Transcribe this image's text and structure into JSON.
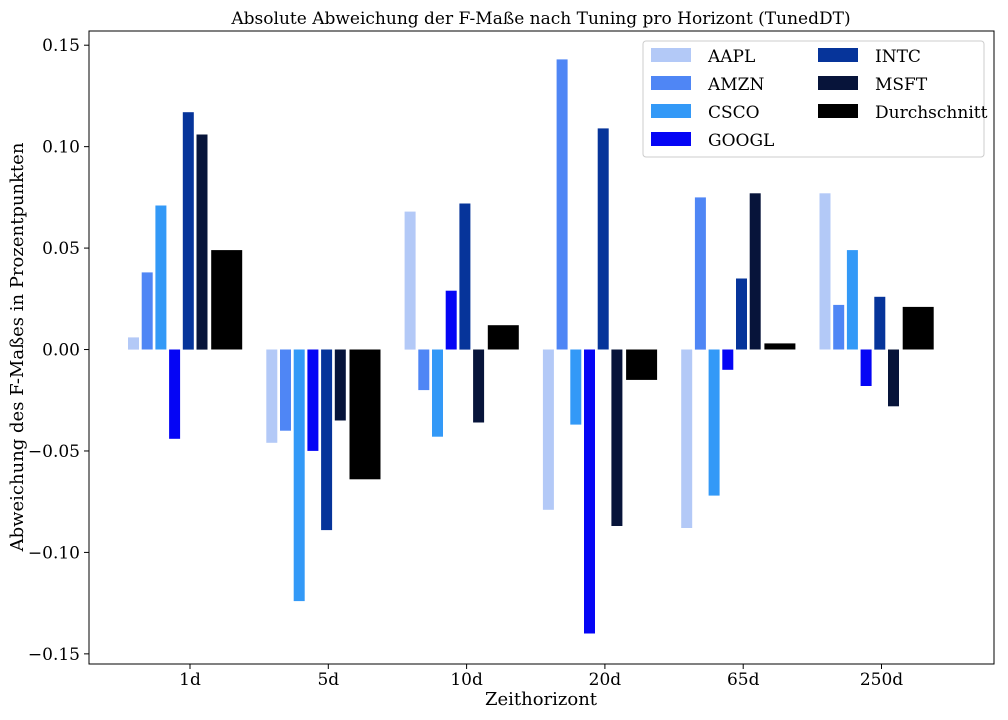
{
  "chart_data": {
    "type": "bar",
    "title": "Absolute Abweichung der F-Maße nach Tuning pro Horizont (TunedDT)",
    "xlabel": "Zeithorizont",
    "ylabel": "Abweichung des F-Maßes in Prozentpunkten",
    "categories": [
      "1d",
      "5d",
      "10d",
      "20d",
      "65d",
      "250d"
    ],
    "ylim": [
      -0.155,
      0.157
    ],
    "yticks": [
      -0.15,
      -0.1,
      -0.05,
      0.0,
      0.05,
      0.1,
      0.15
    ],
    "ytick_labels": [
      "−0.15",
      "−0.10",
      "−0.05",
      "0.00",
      "0.05",
      "0.10",
      "0.15"
    ],
    "legend": {
      "position": "top-right",
      "columns": 2
    },
    "grid": false,
    "series": [
      {
        "name": "AAPL",
        "color": "#b3c9f7",
        "values": [
          0.006,
          -0.046,
          0.068,
          -0.079,
          -0.088,
          0.077
        ]
      },
      {
        "name": "AMZN",
        "color": "#4f86f5",
        "values": [
          0.038,
          -0.04,
          -0.02,
          0.143,
          0.075,
          0.022
        ]
      },
      {
        "name": "CSCO",
        "color": "#3399f7",
        "values": [
          0.071,
          -0.124,
          -0.043,
          -0.037,
          -0.072,
          0.049
        ]
      },
      {
        "name": "GOOGL",
        "color": "#0505f5",
        "values": [
          -0.044,
          -0.05,
          0.029,
          -0.14,
          -0.01,
          -0.018
        ]
      },
      {
        "name": "INTC",
        "color": "#06349a",
        "values": [
          0.117,
          -0.089,
          0.072,
          0.109,
          0.035,
          0.026
        ]
      },
      {
        "name": "MSFT",
        "color": "#07143a",
        "values": [
          0.106,
          -0.035,
          -0.036,
          -0.087,
          0.077,
          -0.028
        ]
      },
      {
        "name": "Durchschnitt",
        "color": "#000000",
        "values": [
          0.049,
          -0.064,
          0.012,
          -0.015,
          0.003,
          0.021
        ]
      }
    ]
  }
}
